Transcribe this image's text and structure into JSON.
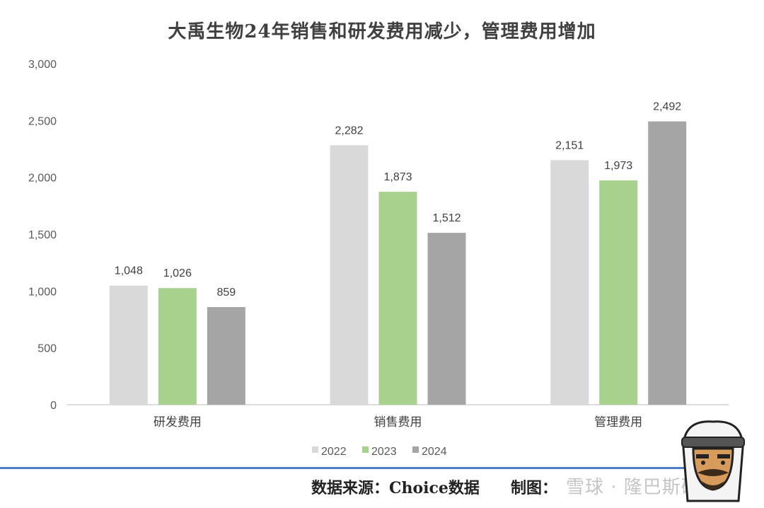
{
  "chart_data": {
    "type": "bar",
    "title": "大禹生物24年销售和研发费用减少，管理费用增加",
    "categories": [
      "研发费用",
      "销售费用",
      "管理费用"
    ],
    "series": [
      {
        "name": "2022",
        "values": [
          1048,
          2282,
          2151
        ],
        "color": "#d9d9d9",
        "labels": [
          "1,048",
          "2,282",
          "2,151"
        ]
      },
      {
        "name": "2023",
        "values": [
          1026,
          1873,
          1973
        ],
        "color": "#a9d18e",
        "labels": [
          "1,026",
          "1,873",
          "1,973"
        ]
      },
      {
        "name": "2024",
        "values": [
          859,
          1512,
          2492
        ],
        "color": "#a5a5a5",
        "labels": [
          "859",
          "1,512",
          "2,492"
        ]
      }
    ],
    "ylim": [
      0,
      3000
    ],
    "yticks": [
      0,
      500,
      1000,
      1500,
      2000,
      2500,
      3000
    ],
    "ytick_labels": [
      "0",
      "500",
      "1,000",
      "1,500",
      "2,000",
      "2,500",
      "3,000"
    ],
    "grid": false,
    "legend_position": "bottom"
  },
  "footer": {
    "source": "数据来源：Choice数据",
    "maker": "制图：",
    "watermark": "雪球 · 隆巴斯研究"
  }
}
